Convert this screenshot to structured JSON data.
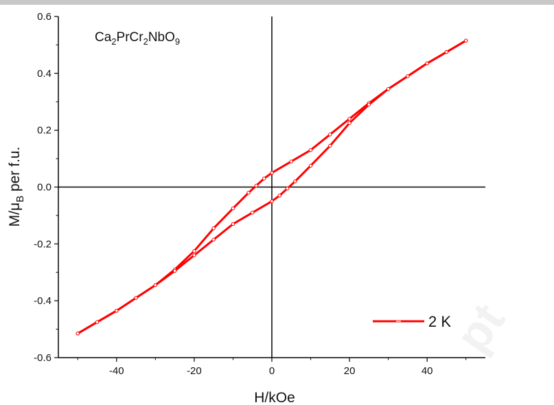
{
  "chart_data": {
    "type": "line",
    "compound": {
      "base": "Ca",
      "s1": "2",
      "mid": "PrCr",
      "s2": "2",
      "tail": "NbO",
      "s3": "9"
    },
    "xlabel": "H/kOe",
    "ylabel": {
      "main": "M/μ",
      "sub": "B",
      "rest": " per f.u."
    },
    "xlim": [
      -55,
      55
    ],
    "ylim": [
      -0.6,
      0.6
    ],
    "x_ticks": [
      -40,
      -20,
      0,
      20,
      40
    ],
    "x_tick_labels": [
      "-40",
      "-20",
      "0",
      "20",
      "40"
    ],
    "y_ticks": [
      -0.6,
      -0.4,
      -0.2,
      0.0,
      0.2,
      0.4,
      0.6
    ],
    "y_tick_labels": [
      "-0.6",
      "-0.4",
      "-0.2",
      "0.0",
      "0.2",
      "0.4",
      "0.6"
    ],
    "legend": {
      "label": "2 K",
      "position": "bottom-right"
    },
    "grid": false,
    "color": "#ff0000",
    "series": [
      {
        "name": "2 K",
        "branches": [
          {
            "x": [
              50,
              45,
              40,
              35,
              30,
              25,
              20,
              15,
              10,
              5,
              0,
              -2,
              -4,
              -6,
              -10,
              -15,
              -20,
              -25,
              -30,
              -35,
              -40,
              -45,
              -50
            ],
            "y": [
              0.515,
              0.475,
              0.435,
              0.39,
              0.345,
              0.295,
              0.24,
              0.185,
              0.13,
              0.09,
              0.05,
              0.03,
              0.005,
              -0.02,
              -0.075,
              -0.145,
              -0.225,
              -0.29,
              -0.345,
              -0.39,
              -0.435,
              -0.475,
              -0.515
            ]
          },
          {
            "x": [
              -50,
              -45,
              -40,
              -35,
              -30,
              -25,
              -20,
              -15,
              -10,
              -5,
              0,
              2,
              4,
              6,
              10,
              15,
              20,
              25,
              30,
              35,
              40,
              45,
              50
            ],
            "y": [
              -0.515,
              -0.475,
              -0.435,
              -0.39,
              -0.345,
              -0.295,
              -0.24,
              -0.185,
              -0.13,
              -0.09,
              -0.05,
              -0.03,
              -0.005,
              0.02,
              0.075,
              0.145,
              0.225,
              0.29,
              0.345,
              0.39,
              0.435,
              0.475,
              0.515
            ]
          }
        ]
      }
    ]
  },
  "watermark": "pt"
}
